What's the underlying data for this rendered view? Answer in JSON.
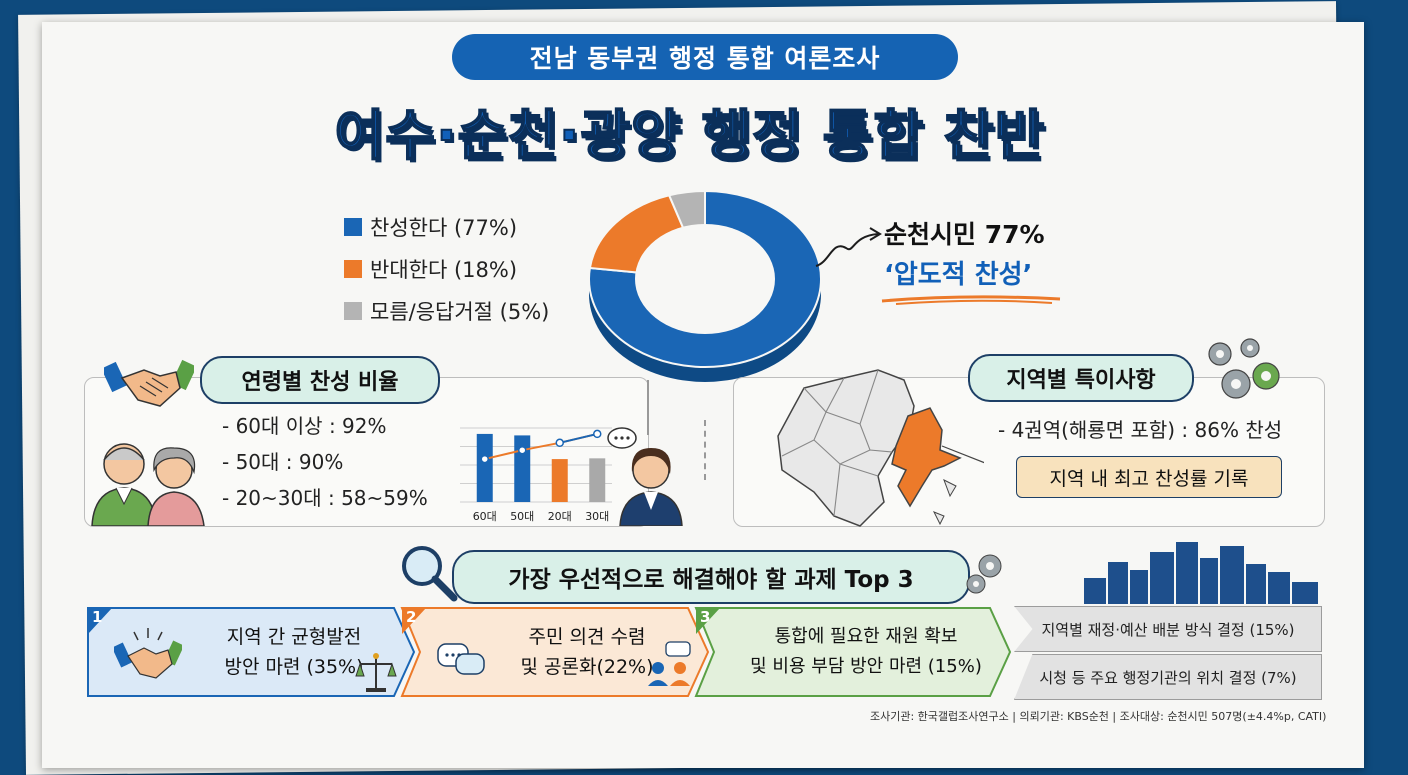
{
  "header": {
    "survey_title": "전남 동부권 행정 통합 여론조사",
    "headline": "여수·순천·광양 행정 통합 찬반"
  },
  "chart_data": [
    {
      "type": "pie",
      "title": "",
      "slices": [
        {
          "label": "찬성한다 (77%)",
          "value": 77,
          "color": "#1a66b5"
        },
        {
          "label": "반대한다 (18%)",
          "value": 18,
          "color": "#ec7a2a"
        },
        {
          "label": "모름/응답거절 (5%)",
          "value": 5,
          "color": "#b4b4b4"
        }
      ]
    },
    {
      "type": "bar",
      "title": "",
      "categories": [
        "60대",
        "50대",
        "20대",
        "30대"
      ],
      "values": [
        92,
        90,
        58,
        59
      ],
      "line_values": [
        58,
        70,
        80,
        92
      ],
      "colors": [
        "#1a66b5",
        "#1a66b5",
        "#ec7a2a",
        "#a9a9a9"
      ],
      "ylim": [
        0,
        100
      ]
    }
  ],
  "callout": {
    "line1": "순천시민 77%",
    "line2": "‘압도적 찬성’"
  },
  "age_section": {
    "title": "연령별 찬성 비율",
    "items": [
      "- 60대 이상 : 92%",
      "- 50대 : 90%",
      "- 20~30대 : 58~59%"
    ]
  },
  "region_section": {
    "title": "지역별 특이사항",
    "item": "- 4권역(해룡면 포함) : 86% 찬성",
    "note": "지역 내 최고 찬성률 기록"
  },
  "top3": {
    "title": "가장 우선적으로 해결해야 할 과제 Top 3",
    "items": [
      {
        "num": "1",
        "line1": "지역 간 균형발전",
        "line2": "방안 마련 (35%)",
        "color": "#dbe9f7",
        "border": "#1a66b5"
      },
      {
        "num": "2",
        "line1": "주민 의견 수렴",
        "line2": "및 공론화(22%)",
        "color": "#fbe8d6",
        "border": "#ec7a2a"
      },
      {
        "num": "3",
        "line1": "통합에 필요한 재원 확보",
        "line2": "및 비용 부담 방안 마련 (15%)",
        "color": "#e3f0dc",
        "border": "#5aa045"
      }
    ],
    "extra": [
      "지역별 재정·예산 배분 방식 결정 (15%)",
      "시청 등 주요 행정기관의 위치 결정 (7%)"
    ]
  },
  "footnote": "조사기관: 한국갤럽조사연구소 | 의뢰기관: KBS순천 | 조사대상: 순천시민 507명(±4.4%p, CATI)",
  "icons": [
    "handshake-icon",
    "elderly-couple-icon",
    "businesswoman-icon",
    "gear-icon",
    "magnifier-icon",
    "city-skyline-icon",
    "map-icon",
    "chat-icon",
    "scale-icon"
  ]
}
